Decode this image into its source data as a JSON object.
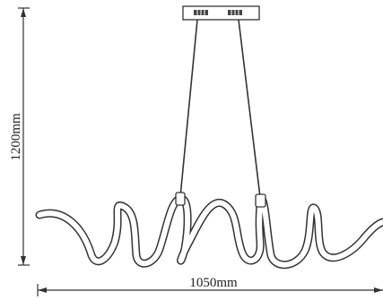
{
  "dimensions": {
    "height_label": "1200mm",
    "width_label": "1050mm"
  },
  "colors": {
    "stroke": "#333333",
    "fill": "#ffffff",
    "text": "#222222"
  },
  "canopy_led_icon": "led-cluster-icon"
}
